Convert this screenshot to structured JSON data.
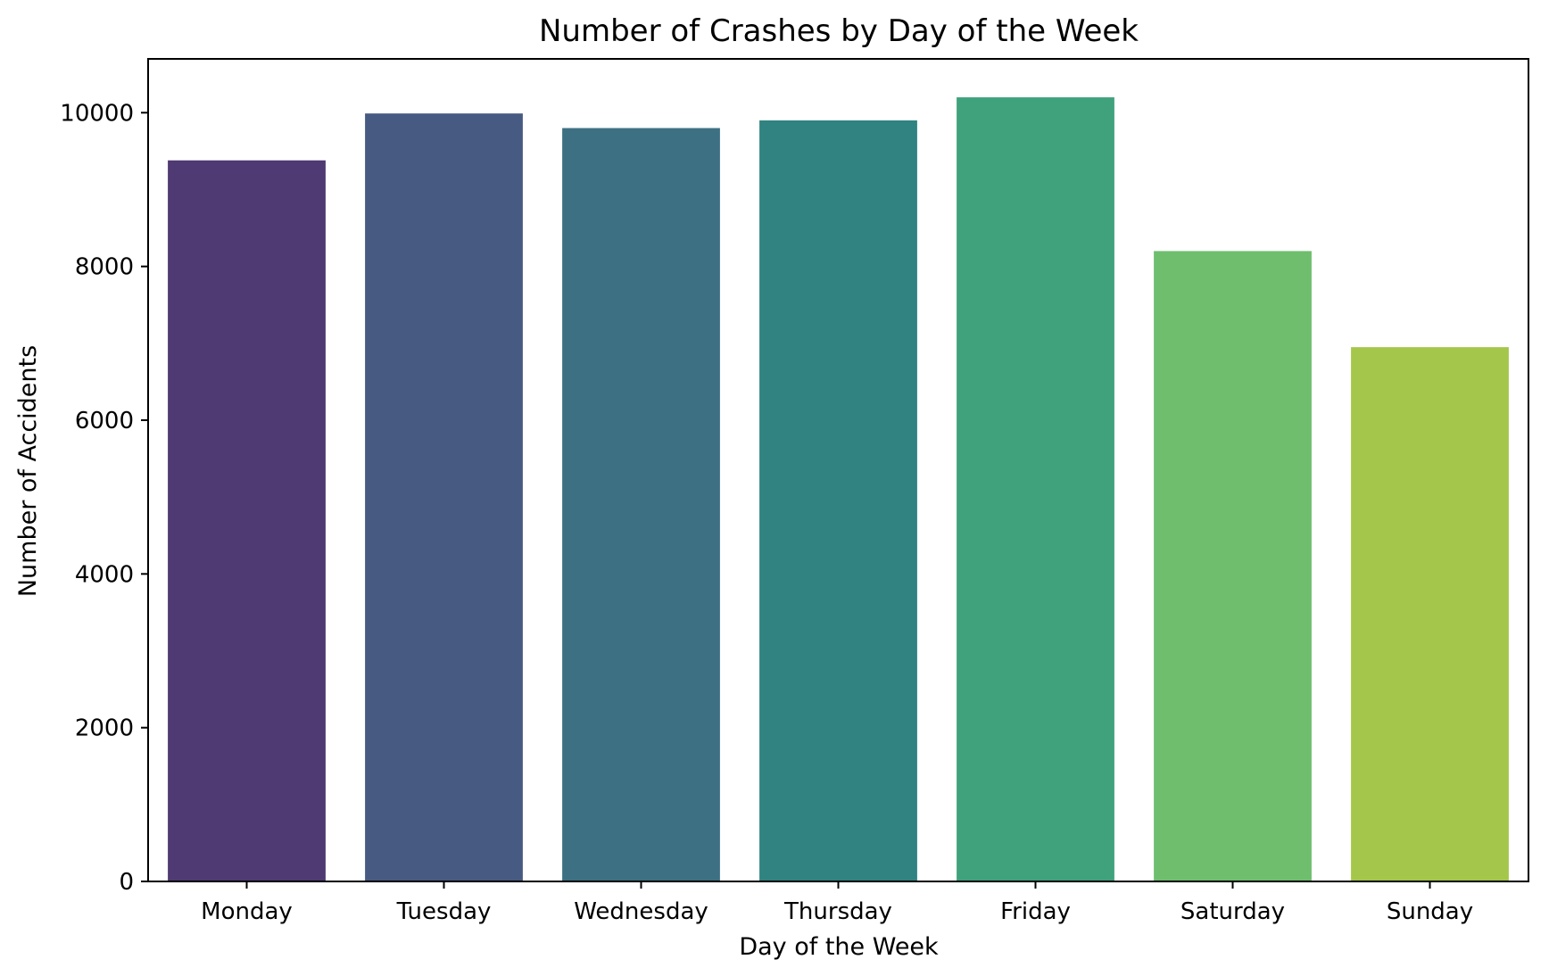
{
  "chart_data": {
    "type": "bar",
    "title": "Number of Crashes by Day of the Week",
    "xlabel": "Day of the Week",
    "ylabel": "Number of Accidents",
    "categories": [
      "Monday",
      "Tuesday",
      "Wednesday",
      "Thursday",
      "Friday",
      "Saturday",
      "Sunday"
    ],
    "values": [
      9380,
      9990,
      9800,
      9900,
      10200,
      8200,
      6950
    ],
    "colors": [
      "#4f3a73",
      "#475a82",
      "#3d7083",
      "#308381",
      "#3fa27d",
      "#6fbe6e",
      "#a4c64a"
    ],
    "ylim": [
      0,
      10700
    ],
    "yticks": [
      0,
      2000,
      4000,
      6000,
      8000,
      10000
    ],
    "ytick_labels": [
      "0",
      "2000",
      "4000",
      "6000",
      "8000",
      "10000"
    ],
    "grid": false,
    "legend": "none"
  }
}
